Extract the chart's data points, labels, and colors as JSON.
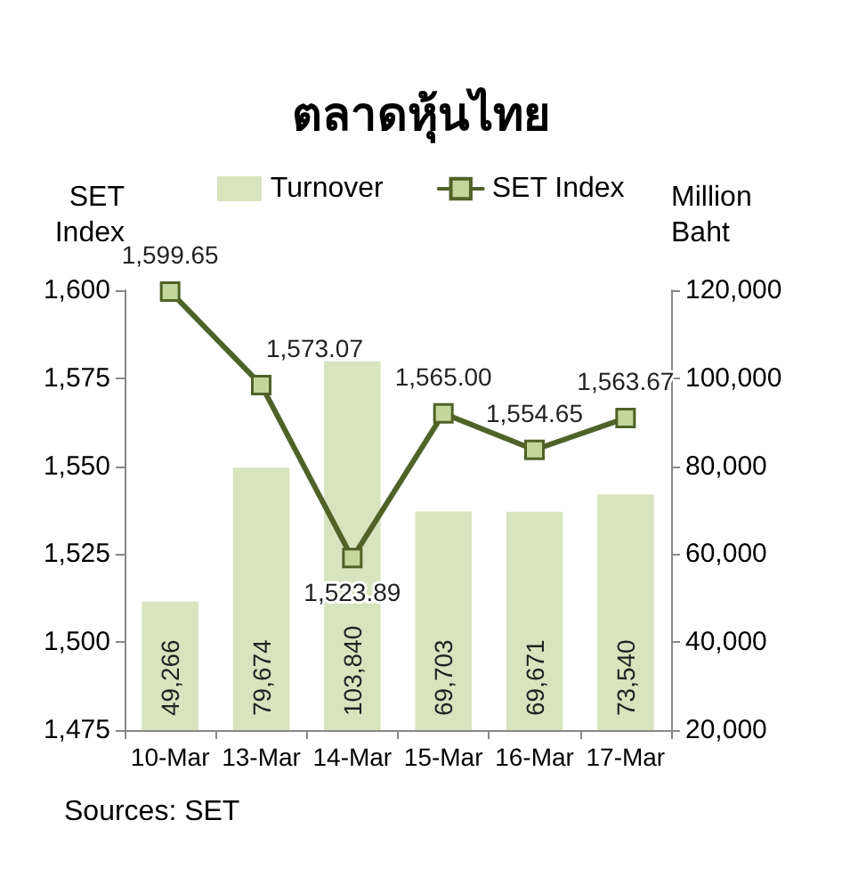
{
  "chart_data": {
    "type": "bar",
    "title": "ตลาดหุ้นไทย",
    "ylabel": "SET Index",
    "y2label": "Million Baht",
    "categories": [
      "10-Mar",
      "13-Mar",
      "14-Mar",
      "15-Mar",
      "16-Mar",
      "17-Mar"
    ],
    "series": [
      {
        "name": "Turnover",
        "axis": "y2",
        "color": "#d7e4bd",
        "values": [
          49266,
          79674,
          103840,
          69703,
          69671,
          73540
        ],
        "value_labels": [
          "49,266",
          "79,674",
          "103,840",
          "69,703",
          "69,671",
          "73,540"
        ]
      },
      {
        "name": "SET Index",
        "type": "line",
        "color": "#4f6228",
        "values": [
          1599.65,
          1573.07,
          1523.89,
          1565.0,
          1554.65,
          1563.67
        ],
        "value_labels": [
          "1,599.65",
          "1,573.07",
          "1,523.89",
          "1,565.00",
          "1,554.65",
          "1,563.67"
        ]
      }
    ],
    "ylim": [
      1475,
      1600
    ],
    "yticks": [
      {
        "value": 1475,
        "label": "1,475"
      },
      {
        "value": 1500,
        "label": "1,500"
      },
      {
        "value": 1525,
        "label": "1,525"
      },
      {
        "value": 1550,
        "label": "1,550"
      },
      {
        "value": 1575,
        "label": "1,575"
      },
      {
        "value": 1600,
        "label": "1,600"
      }
    ],
    "y2lim": [
      20000,
      120000
    ],
    "y2ticks": [
      {
        "value": 20000,
        "label": "20,000"
      },
      {
        "value": 40000,
        "label": "40,000"
      },
      {
        "value": 60000,
        "label": "60,000"
      },
      {
        "value": 80000,
        "label": "80,000"
      },
      {
        "value": 100000,
        "label": "100,000"
      },
      {
        "value": 120000,
        "label": "120,000"
      }
    ],
    "legend": "top",
    "marker": "square",
    "line_style": "solid",
    "annotations": [
      "Sources: SET"
    ]
  }
}
